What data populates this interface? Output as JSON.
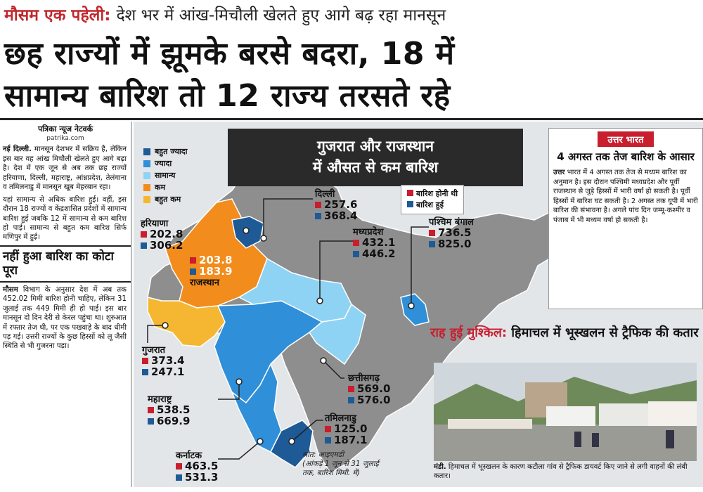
{
  "header": {
    "kicker_red": "मौसम एक पहेली:",
    "kicker_rest": "देश भर में आंख-मिचौली खेलते हुए आगे बढ़ रहा मानसून",
    "headline_line1": "छह राज्यों में झूमके बरसे बदरा, 18 में",
    "headline_line2": "सामान्य बारिश तो 12 राज्य तरसते रहे"
  },
  "left_column": {
    "byline": "पत्रिका न्यूज नेटवर्क",
    "website": "patrika.com",
    "para1_lead": "नई दिल्ली.",
    "para1": "मानसून देशभर में सक्रिय है, लेकिन इस बार वह आंख मिचौली खेलते हुए आगे बढ़ा है। देश में एक जून से अब तक छह राज्यों हरियाणा, दिल्ली, महाराष्ट्र, आंध्रप्रदेश, तेलंगाना व तमिलनाडु में मानसून खूब मेहरबान रहा।",
    "para2": "यहां सामान्य से अधिक बारिश हुई। वहीं, इस दौरान 18 राज्यों व केंद्रशासित प्रदेशों में सामान्य बारिश हुई जबकि 12 में सामान्य से कम बारिश हो पाई। सामान्य से बहुत कम बारिश सिर्फ मणिपुर में हुई।",
    "subhead": "नहीं हुआ बारिश का कोटा पूरा",
    "para3_lead": "मौसम",
    "para3": "विभाग के अनुसार देश में अब तक 452.02 मिमी बारिश होनी चाहिए, लेकिन 31 जुलाई तक 449 मिमी ही हो पाई। इस बार मानसून दो दिन देरी से केरल पहुंचा था। शुरुआत में रफ्तार तेज थी, पर एक पखवाड़े के बाद धीमी पड़ गई। उत्तरी राज्यों के कुछ हिस्सों को लू जैसी स्थिति से भी गुजरना पड़ा।"
  },
  "map": {
    "banner_line1": "गुजरात और राजस्थान",
    "banner_line2": "में औसत से कम बारिश",
    "legend": [
      {
        "label": "बहुत ज्यादा",
        "color": "#1e5a96"
      },
      {
        "label": "ज्यादा",
        "color": "#2f8fd8"
      },
      {
        "label": "सामान्य",
        "color": "#8fd3f4"
      },
      {
        "label": "कम",
        "color": "#f28c1c"
      },
      {
        "label": "बहुत कम",
        "color": "#f5b731"
      }
    ],
    "value_legend": {
      "expected": "बारिश होनी थी",
      "actual": "बारिश हुई"
    },
    "states": {
      "delhi": {
        "name": "दिल्ली",
        "expected": "257.6",
        "actual": "368.4"
      },
      "haryana": {
        "name": "हरियाणा",
        "expected": "202.8",
        "actual": "306.2"
      },
      "rajasthan": {
        "name": "राजस्थान",
        "expected": "203.8",
        "actual": "183.9"
      },
      "mp": {
        "name": "मध्यप्रदेश",
        "expected": "432.1",
        "actual": "446.2"
      },
      "wb": {
        "name": "पश्चिम बंगाल",
        "expected": "736.5",
        "actual": "825.0"
      },
      "gujarat": {
        "name": "गुजरात",
        "expected": "373.4",
        "actual": "247.1"
      },
      "maharashtra": {
        "name": "महाराष्ट्र",
        "expected": "538.5",
        "actual": "669.9"
      },
      "chhattisgarh": {
        "name": "छत्तीसगढ़",
        "expected": "569.0",
        "actual": "576.0"
      },
      "tamilnadu": {
        "name": "तमिलनाडु",
        "expected": "125.0",
        "actual": "187.1"
      },
      "karnataka": {
        "name": "कर्नाटक",
        "expected": "463.5",
        "actual": "531.3"
      }
    },
    "source_line1": "स्रोत: आइएमडी",
    "source_line2": "(आंकड़े 1 जून से 31 जुलाई",
    "source_line3": "तक, बारिश मिमी. में)"
  },
  "north_box": {
    "tag": "उत्तर भारत",
    "headline": "4 अगस्त तक तेज बारिश के आसार",
    "lead": "उत्तर",
    "body": "भारत में 4 अगस्त तक तेज से मध्यम बारिश का अनुमान है। इस दौरान पश्चिमी मध्यप्रदेश और पूर्वी राजस्थान से जुड़े हिस्सों में भारी वर्षा हो सकती है। पूर्वी हिस्सों में बारिश घट सकती है। 2 अगस्त तक यूपी में भारी बारिश की संभावना है। अगले पांच दिन जम्मू-कश्मीर व पंजाब में भी मध्यम वर्षा हो सकती है।"
  },
  "himachal": {
    "head_red": "राह हुई मुश्किल:",
    "head_rest": "हिमाचल में भूस्खलन से ट्रैफिक की कतार",
    "caption_lead": "मंडी.",
    "caption": "हिमाचल में भूस्खलन के कारण कटौला गांव से ट्रैफिक डायवर्ट किए जाने से लगी वाहनों की लंबी कतार।"
  }
}
